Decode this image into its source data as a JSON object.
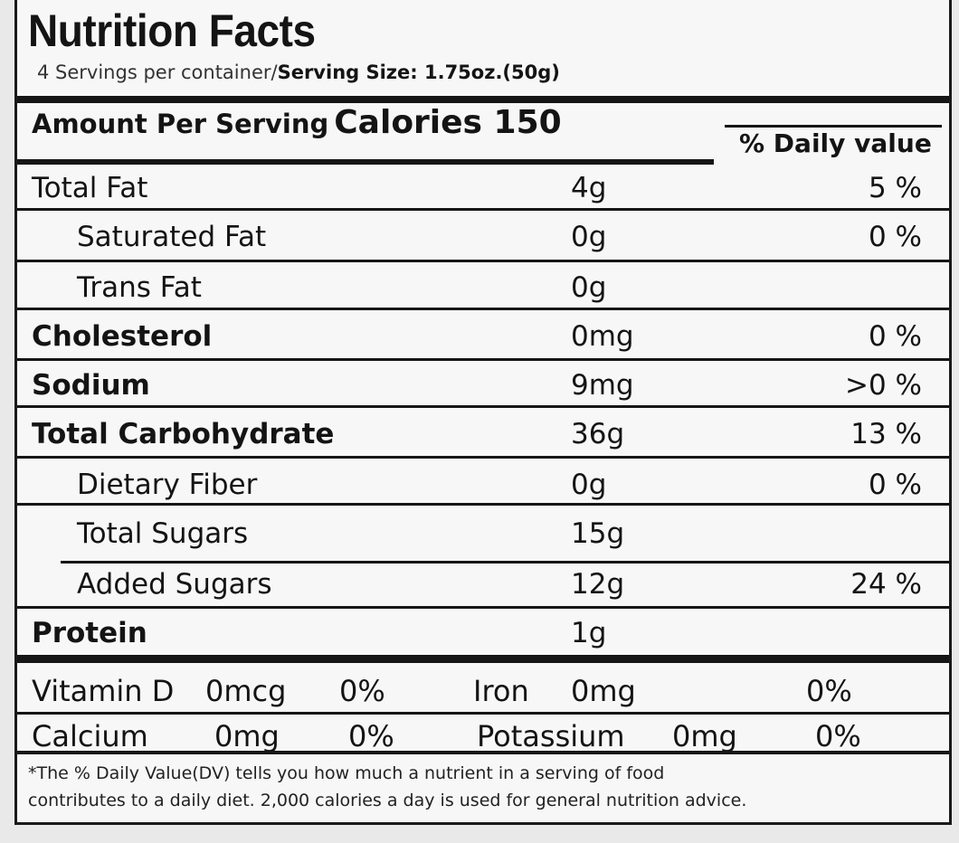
{
  "title": "Nutrition Facts",
  "servings_per_container": "4 Servings per container/",
  "serving_size": "Serving Size: 1.75oz.(50g)",
  "amount_per_serving": "Amount Per Serving",
  "calories": "Calories 150",
  "dv_header": "% Daily value",
  "nutrients": [
    {
      "name": "Total Fat",
      "amount": "4g",
      "dv": "5 %"
    },
    {
      "name": "Saturated Fat",
      "amount": "0g",
      "dv": "0 %"
    },
    {
      "name": "Trans Fat",
      "amount": "0g",
      "dv": ""
    },
    {
      "name": "Cholesterol",
      "amount": "0mg",
      "dv": "0 %"
    },
    {
      "name": "Sodium",
      "amount": "9mg",
      "dv": ">0 %"
    },
    {
      "name": "Total Carbohydrate",
      "amount": "36g",
      "dv": "13 %"
    },
    {
      "name": "Dietary Fiber",
      "amount": "0g",
      "dv": "0 %"
    },
    {
      "name": "Total Sugars",
      "amount": "15g",
      "dv": ""
    },
    {
      "name": "Added Sugars",
      "amount": "12g",
      "dv": "24 %"
    },
    {
      "name": "Protein",
      "amount": "1g",
      "dv": ""
    }
  ],
  "vitamins": [
    {
      "name": "Vitamin D",
      "amount": "0mcg",
      "dv": "0%",
      "name2": "Iron",
      "amount2": "0mg",
      "dv2": "0%"
    },
    {
      "name": "Calcium",
      "amount": "0mg",
      "dv": "0%",
      "name2": "Potassium",
      "amount2": "0mg",
      "dv2": "0%"
    }
  ],
  "footnote_line1": "*The % Daily Value(DV) tells you how much a nutrient in a serving of food",
  "footnote_line2": "contributes to a daily diet. 2,000 calories a day is used for general nutrition advice."
}
